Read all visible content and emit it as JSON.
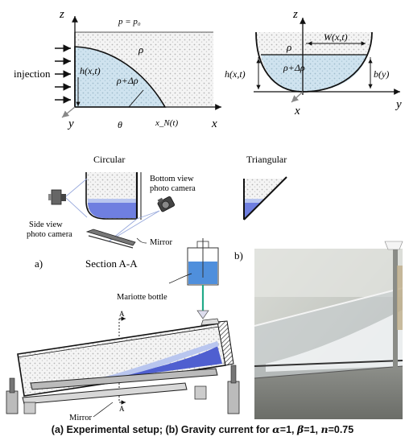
{
  "top_left": {
    "z": "z",
    "pressure": "p = p₀",
    "injection": "injection",
    "rho": "ρ",
    "h": "h(x,t)",
    "rho_dr": "ρ+Δρ",
    "y": "y",
    "theta": "θ",
    "xN": "x_N(t)",
    "x": "x"
  },
  "top_right": {
    "z": "z",
    "rho": "ρ",
    "W": "W(x,t)",
    "h": "h(x,t)",
    "rho_dr": "ρ+Δρ",
    "b": "b(y)",
    "x": "x",
    "y": "y"
  },
  "setup": {
    "circular": "Circular",
    "triangular": "Triangular",
    "bottom_cam": [
      "Bottom view",
      "photo camera"
    ],
    "side_cam": [
      "Side view",
      "photo camera"
    ],
    "mirror_top": "Mirror",
    "label_a": "a)",
    "section": "Section A-A",
    "label_b": "b)",
    "mariotte": "Mariotte bottle",
    "A": "A",
    "mirror_bottom": "Mirror"
  },
  "caption": {
    "text1": "(a)  Experimental setup; (b) Gravity current for ",
    "alpha_sym": "α",
    "text2": "=1, ",
    "beta_sym": "β",
    "text3": "=1,  ",
    "n_sym": "n",
    "text4": "=0.75"
  },
  "colors": {
    "fluid_blue": "#cfe3ef",
    "current_blue": "#4f5fd0",
    "light_blue": "#b9c6ef",
    "sand": "#ececec",
    "ink": "#111111"
  }
}
